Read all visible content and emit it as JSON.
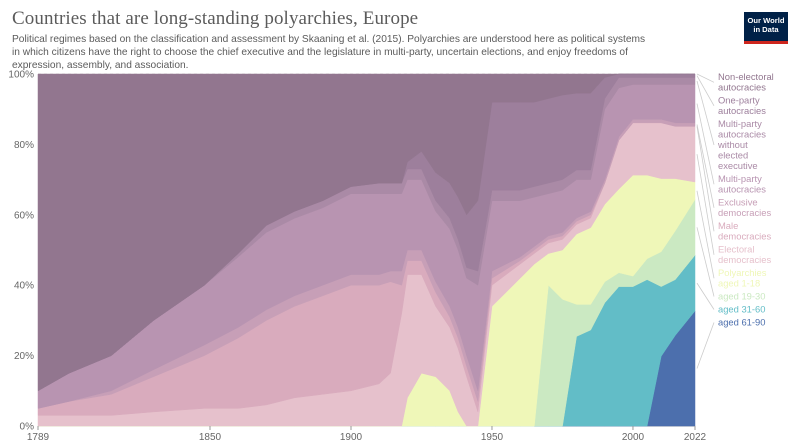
{
  "title": "Countries that are long-standing polyarchies, Europe",
  "subtitle": "Political regimes based on the classification and assessment by Skaaning et al. (2015). Polyarchies are understood here as political systems in which citizens have the right to choose the chief executive and the legislature in multi-party, uncertain elections, and enjoy freedoms of expression, assembly, and association.",
  "logo": {
    "line1": "Our World",
    "line2": "in Data"
  },
  "chart_data": {
    "type": "area",
    "stacked": true,
    "normalized": true,
    "x_unit": "year",
    "xlim": [
      1789,
      2022
    ],
    "ylim": [
      0,
      100
    ],
    "y_unit": "%",
    "x_ticks": [
      "1789",
      "1850",
      "1900",
      "1950",
      "2000",
      "2022"
    ],
    "y_ticks": [
      "0%",
      "20%",
      "40%",
      "60%",
      "80%",
      "100%"
    ],
    "legend_position": "right",
    "x": [
      1789,
      1800,
      1815,
      1830,
      1848,
      1860,
      1870,
      1880,
      1890,
      1900,
      1910,
      1914,
      1918,
      1920,
      1925,
      1930,
      1935,
      1938,
      1941,
      1945,
      1950,
      1960,
      1965,
      1970,
      1975,
      1980,
      1985,
      1990,
      1995,
      2000,
      2005,
      2010,
      2015,
      2022
    ],
    "series": [
      {
        "name": "aged 61-90",
        "color": "#4c6fad",
        "values": [
          0,
          0,
          0,
          0,
          0,
          0,
          0,
          0,
          0,
          0,
          0,
          0,
          0,
          0,
          0,
          0,
          0,
          0,
          0,
          0,
          0,
          0,
          0,
          0,
          0,
          0,
          0,
          0,
          0,
          0,
          0,
          20,
          26,
          33
        ]
      },
      {
        "name": "aged 31-60",
        "color": "#62bdc7",
        "values": [
          0,
          0,
          0,
          0,
          0,
          0,
          0,
          0,
          0,
          0,
          0,
          0,
          0,
          0,
          0,
          0,
          0,
          0,
          0,
          0,
          0,
          0,
          0,
          0,
          0,
          28,
          30,
          35,
          40,
          40,
          42,
          20,
          16,
          16
        ]
      },
      {
        "name": "aged 19-30",
        "color": "#cbe9c2",
        "values": [
          0,
          0,
          0,
          0,
          0,
          0,
          0,
          0,
          0,
          0,
          0,
          0,
          0,
          0,
          0,
          0,
          0,
          0,
          0,
          0,
          0,
          0,
          0,
          40,
          36,
          10,
          8,
          6,
          4,
          3,
          6,
          10,
          14,
          16
        ]
      },
      {
        "name": "Polyarchies aged 1-18",
        "color": "#eff7b8",
        "values": [
          0,
          0,
          0,
          0,
          0,
          0,
          0,
          0,
          0,
          0,
          0,
          0,
          0,
          8,
          15,
          14,
          10,
          4,
          0,
          0,
          34,
          42,
          46,
          9,
          14,
          22,
          24,
          22,
          24,
          29,
          24,
          21,
          15,
          5
        ]
      },
      {
        "name": "Electoral democracies",
        "color": "#e6c1cc",
        "values": [
          3,
          3,
          3,
          4,
          5,
          5,
          6,
          8,
          9,
          10,
          12,
          15,
          32,
          35,
          28,
          20,
          18,
          18,
          14,
          4,
          6,
          4,
          3,
          3,
          3,
          3,
          3,
          6,
          14,
          15,
          15,
          16,
          15,
          16
        ]
      },
      {
        "name": "Male democracies",
        "color": "#d9abbd",
        "values": [
          2,
          4,
          6,
          10,
          15,
          20,
          24,
          26,
          28,
          30,
          28,
          26,
          8,
          4,
          4,
          4,
          3,
          3,
          3,
          3,
          2,
          1,
          1,
          1,
          1,
          1,
          1,
          0,
          0,
          0,
          0,
          0,
          0,
          0
        ]
      },
      {
        "name": "Exclusive democracies",
        "color": "#c79fb7",
        "values": [
          0,
          0,
          1,
          2,
          3,
          3,
          3,
          3,
          3,
          3,
          3,
          3,
          4,
          3,
          3,
          3,
          3,
          3,
          3,
          3,
          2,
          1,
          1,
          1,
          1,
          1,
          1,
          1,
          1,
          1,
          1,
          1,
          1,
          1
        ]
      },
      {
        "name": "Multi-party autocracies",
        "color": "#b894b1",
        "values": [
          5,
          8,
          10,
          14,
          17,
          20,
          22,
          22,
          22,
          23,
          23,
          22,
          22,
          20,
          20,
          20,
          22,
          22,
          22,
          30,
          20,
          16,
          14,
          12,
          12,
          12,
          10,
          20,
          14,
          10,
          10,
          10,
          11,
          11
        ]
      },
      {
        "name": "Multi-party autocracies without elected executive",
        "color": "#aa8aa6",
        "values": [
          0,
          0,
          0,
          0,
          0,
          1,
          2,
          2,
          2,
          2,
          3,
          3,
          3,
          3,
          3,
          3,
          3,
          3,
          3,
          4,
          3,
          3,
          3,
          3,
          3,
          3,
          3,
          3,
          3,
          2,
          2,
          2,
          2,
          2
        ]
      },
      {
        "name": "One-party autocracies",
        "color": "#9d7f9c",
        "values": [
          0,
          0,
          0,
          0,
          0,
          0,
          0,
          0,
          0,
          0,
          0,
          0,
          0,
          2,
          5,
          8,
          10,
          12,
          15,
          20,
          25,
          25,
          24,
          24,
          24,
          24,
          24,
          6,
          1,
          1,
          1,
          1,
          1,
          1
        ]
      },
      {
        "name": "Non-electoral autocracies",
        "color": "#92768f",
        "values": [
          90,
          85,
          80,
          70,
          60,
          51,
          43,
          39,
          36,
          32,
          31,
          31,
          31,
          25,
          22,
          28,
          31,
          35,
          40,
          36,
          8,
          8,
          8,
          7,
          6,
          6,
          6,
          1,
          0,
          0,
          0,
          0,
          0,
          0
        ]
      }
    ]
  }
}
